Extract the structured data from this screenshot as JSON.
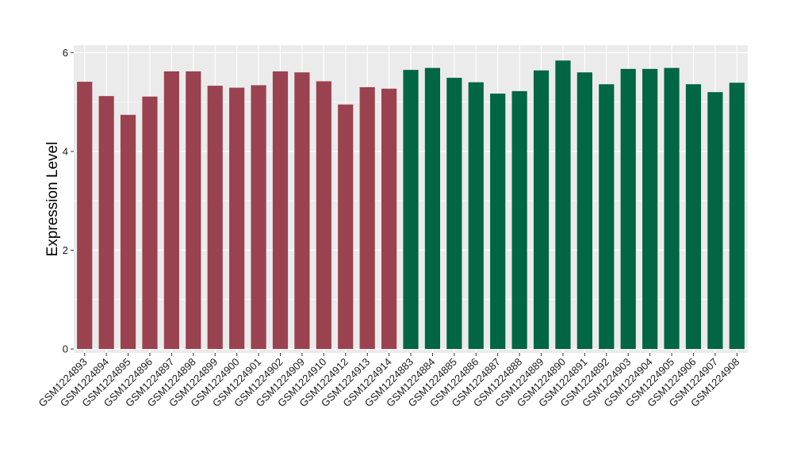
{
  "chart_data": {
    "type": "bar",
    "title": "",
    "xlabel": "",
    "ylabel": "Expression Level",
    "ylim": [
      -0.08,
      6.15
    ],
    "yticks": [
      0,
      2,
      4,
      6
    ],
    "grid": true,
    "legend": "none",
    "colors": {
      "group_a": "#9b4250",
      "group_b": "#006644",
      "panel": "#ebebeb",
      "grid": "#ffffff"
    },
    "categories": [
      "GSM1224893",
      "GSM1224894",
      "GSM1224895",
      "GSM1224896",
      "GSM1224897",
      "GSM1224898",
      "GSM1224899",
      "GSM1224900",
      "GSM1224901",
      "GSM1224902",
      "GSM1224909",
      "GSM1224910",
      "GSM1224912",
      "GSM1224913",
      "GSM1224914",
      "GSM1224883",
      "GSM1224884",
      "GSM1224885",
      "GSM1224886",
      "GSM1224887",
      "GSM1224888",
      "GSM1224889",
      "GSM1224890",
      "GSM1224891",
      "GSM1224892",
      "GSM1224903",
      "GSM1224904",
      "GSM1224905",
      "GSM1224906",
      "GSM1224907",
      "GSM1224908"
    ],
    "values": [
      5.41,
      5.12,
      4.74,
      5.11,
      5.62,
      5.62,
      5.33,
      5.29,
      5.34,
      5.62,
      5.6,
      5.42,
      4.95,
      5.3,
      5.27,
      5.65,
      5.69,
      5.49,
      5.4,
      5.17,
      5.22,
      5.64,
      5.84,
      5.6,
      5.36,
      5.67,
      5.67,
      5.69,
      5.36,
      5.2,
      5.39
    ],
    "groups": [
      "a",
      "a",
      "a",
      "a",
      "a",
      "a",
      "a",
      "a",
      "a",
      "a",
      "a",
      "a",
      "a",
      "a",
      "a",
      "b",
      "b",
      "b",
      "b",
      "b",
      "b",
      "b",
      "b",
      "b",
      "b",
      "b",
      "b",
      "b",
      "b",
      "b",
      "b"
    ]
  }
}
